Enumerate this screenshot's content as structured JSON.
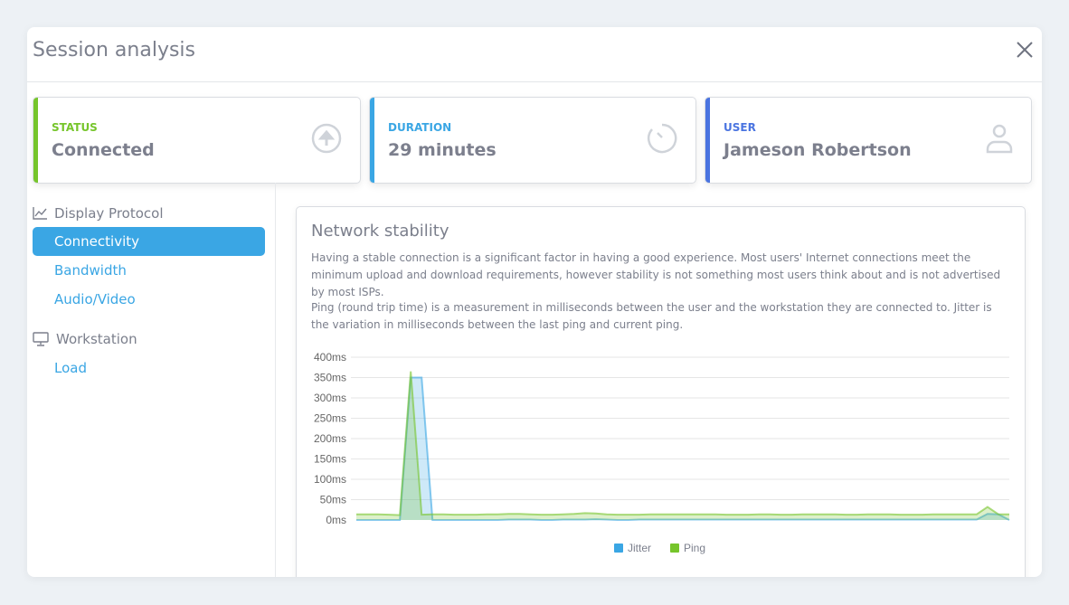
{
  "header": {
    "title": "Session analysis",
    "close_icon": "close-icon"
  },
  "cards": [
    {
      "label": "STATUS",
      "value": "Connected",
      "color": "#76c52b",
      "icon": "arrow-up-circle-icon"
    },
    {
      "label": "DURATION",
      "value": "29 minutes",
      "color": "#3aa6e4",
      "icon": "timer-icon"
    },
    {
      "label": "USER",
      "value": "Jameson Robertson",
      "color": "#4a74e0",
      "icon": "user-icon"
    }
  ],
  "sidebar": {
    "sections": [
      {
        "label": "Display Protocol",
        "icon": "line-chart-icon",
        "items": [
          {
            "label": "Connectivity",
            "active": true
          },
          {
            "label": "Bandwidth"
          },
          {
            "label": "Audio/Video"
          }
        ]
      },
      {
        "label": "Workstation",
        "icon": "monitor-icon",
        "items": [
          {
            "label": "Load"
          }
        ]
      }
    ]
  },
  "panel": {
    "title": "Network stability",
    "para1": "Having a stable connection is a significant factor in having a good experience. Most users' Internet connections meet the minimum upload and download requirements, however stability is not something most users think about and is not advertised by most ISPs.",
    "para2": "Ping (round trip time) is a measurement in milliseconds between the user and the workstation they are connected to. Jitter is the variation in milliseconds between the last ping and current ping."
  },
  "chart_data": {
    "type": "area",
    "ylim": [
      0,
      400
    ],
    "yticks": [
      "0ms",
      "50ms",
      "100ms",
      "150ms",
      "200ms",
      "250ms",
      "300ms",
      "350ms",
      "400ms"
    ],
    "grid": true,
    "legend": "bottom",
    "series": [
      {
        "name": "Jitter",
        "color": "#3aa6e4",
        "values": [
          0,
          0,
          0,
          0,
          0,
          350,
          350,
          0,
          0,
          0,
          0,
          0,
          0,
          0,
          1,
          1,
          1,
          0,
          0,
          1,
          1,
          1,
          2,
          1,
          0,
          0,
          1,
          1,
          1,
          1,
          1,
          1,
          1,
          1,
          1,
          1,
          1,
          1,
          1,
          1,
          1,
          1,
          1,
          1,
          1,
          1,
          1,
          1,
          1,
          1,
          1,
          1,
          1,
          1,
          1,
          1,
          1,
          1,
          15,
          14,
          0
        ]
      },
      {
        "name": "Ping",
        "color": "#76c52b",
        "values": [
          14,
          14,
          14,
          13,
          12,
          365,
          13,
          14,
          14,
          13,
          13,
          13,
          14,
          14,
          15,
          15,
          14,
          13,
          13,
          14,
          15,
          17,
          16,
          14,
          13,
          13,
          13,
          14,
          14,
          14,
          14,
          14,
          14,
          14,
          13,
          13,
          13,
          14,
          14,
          13,
          13,
          14,
          14,
          14,
          14,
          13,
          13,
          14,
          14,
          14,
          13,
          13,
          13,
          14,
          14,
          14,
          14,
          14,
          32,
          14,
          14
        ]
      }
    ]
  }
}
